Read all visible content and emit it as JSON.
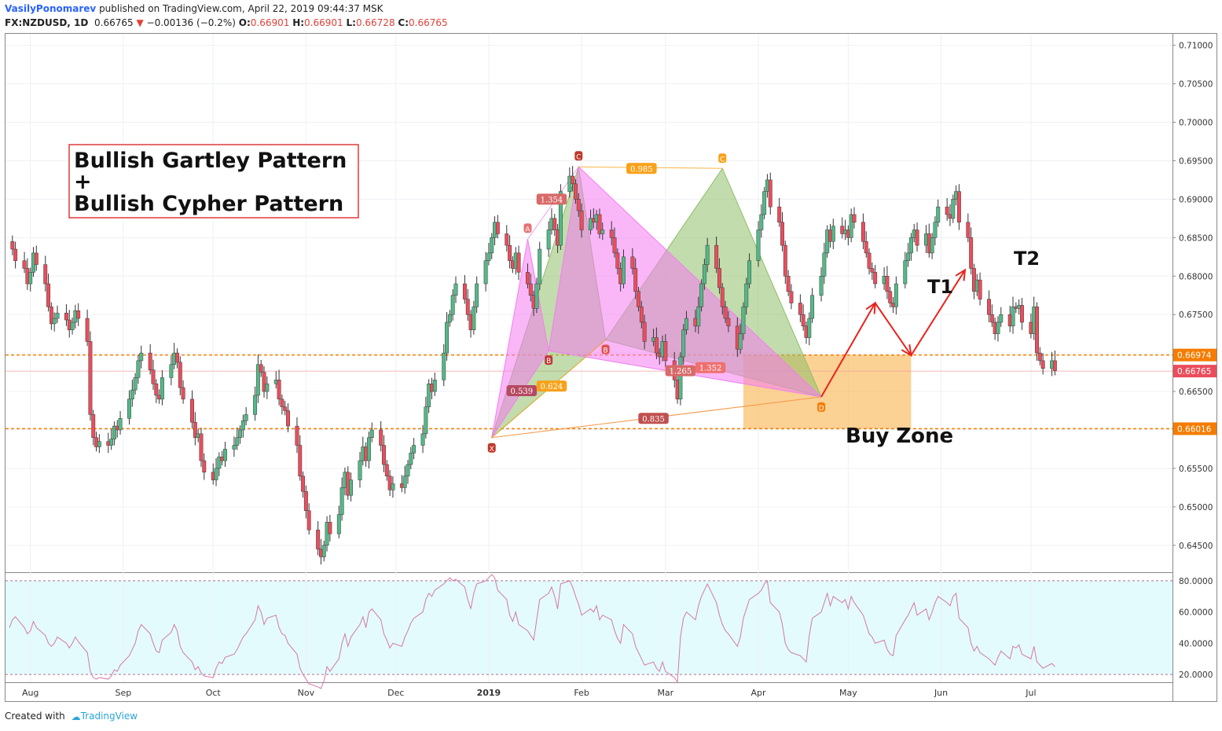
{
  "header": {
    "author": "VasilyPonomarev",
    "published": "published on TradingView.com, April 22, 2019 09:44:37 MSK",
    "symbol": "FX:NZDUSD, 1D",
    "last": "0.66765",
    "change": "−0.00136 (−0.2%)",
    "o_label": "O:",
    "o": "0.66901",
    "h_label": "H:",
    "h": "0.66901",
    "l_label": "L:",
    "l": "0.66728",
    "c_label": "C:",
    "c": "0.66765"
  },
  "footer": {
    "created": "Created with",
    "brand": "TradingView"
  },
  "annotations": {
    "title_line1": "Bullish Gartley Pattern",
    "title_line2": "+",
    "title_line3": "Bullish Cypher Pattern",
    "buy_zone": "Buy Zone",
    "t1": "T1",
    "t2": "T2"
  },
  "colors": {
    "up": "#53b987",
    "down": "#eb4d5c",
    "wick": "#333333",
    "gartley_fill": "#f57cf0",
    "cypher_fill": "#8fbf6a",
    "buy_zone": "#f9b34d",
    "level_line": "#f57c00",
    "arrow": "#e8231c",
    "rsi_bg": "#e3fbfc",
    "rsi_line": "#d677a8"
  },
  "chart_data": {
    "type": "candlestick",
    "x_ticks": [
      "Aug",
      "Sep",
      "Oct",
      "Nov",
      "Dec",
      "2019",
      "Feb",
      "Mar",
      "Apr",
      "May",
      "Jun",
      "Jul"
    ],
    "y_ticks": [
      "0.71000",
      "0.70500",
      "0.70000",
      "0.69500",
      "0.69000",
      "0.68500",
      "0.68000",
      "0.67500",
      "0.67000",
      "0.66500",
      "0.66000",
      "0.65500",
      "0.65000",
      "0.64500"
    ],
    "ylim": [
      0.6415,
      0.7115
    ],
    "price_tags": [
      {
        "label": "0.66974",
        "value": 0.66974,
        "color": "#f57c00"
      },
      {
        "label": "0.66765",
        "value": 0.66765,
        "color": "#eb4d5c"
      },
      {
        "label": "0.66016",
        "value": 0.66016,
        "color": "#f57c00"
      }
    ],
    "levels": [
      0.66974,
      0.66016
    ],
    "buy_zone": {
      "start_date": "2019-03-27",
      "end_date": "2019-05-22",
      "low": 0.66016,
      "high": 0.66974
    },
    "closes": [
      0.6845,
      0.6835,
      0.682,
      0.681,
      0.679,
      0.6805,
      0.683,
      0.6815,
      0.679,
      0.676,
      0.6738,
      0.6745,
      0.6752,
      0.6743,
      0.673,
      0.674,
      0.6755,
      0.6745,
      0.6715,
      0.662,
      0.659,
      0.6578,
      0.6585,
      0.658,
      0.6588,
      0.6605,
      0.66,
      0.6615,
      0.664,
      0.6652,
      0.6668,
      0.669,
      0.67,
      0.6678,
      0.666,
      0.6645,
      0.664,
      0.6668,
      0.6685,
      0.67,
      0.6688,
      0.6655,
      0.664,
      0.661,
      0.659,
      0.6595,
      0.656,
      0.6545,
      0.6535,
      0.655,
      0.6565,
      0.656,
      0.6575,
      0.658,
      0.659,
      0.66,
      0.6612,
      0.662,
      0.6645,
      0.6685,
      0.6675,
      0.665,
      0.666,
      0.6665,
      0.664,
      0.663,
      0.6625,
      0.6605,
      0.658,
      0.654,
      0.652,
      0.6495,
      0.647,
      0.6445,
      0.6435,
      0.645,
      0.648,
      0.6465,
      0.649,
      0.6525,
      0.6545,
      0.6515,
      0.6535,
      0.656,
      0.6578,
      0.656,
      0.659,
      0.66,
      0.658,
      0.6555,
      0.654,
      0.6522,
      0.653,
      0.6525,
      0.654,
      0.6555,
      0.657,
      0.658,
      0.6595,
      0.663,
      0.666,
      0.665,
      0.6665,
      0.67,
      0.674,
      0.675,
      0.6775,
      0.679,
      0.677,
      0.675,
      0.673,
      0.676,
      0.679,
      0.682,
      0.683,
      0.685,
      0.687,
      0.6855,
      0.684,
      0.682,
      0.681,
      0.683,
      0.6805,
      0.679,
      0.6775,
      0.6758,
      0.679,
      0.6835,
      0.686,
      0.6875,
      0.686,
      0.684,
      0.691,
      0.693,
      0.692,
      0.69,
      0.6885,
      0.686,
      0.6875,
      0.687,
      0.688,
      0.6855,
      0.686,
      0.685,
      0.683,
      0.681,
      0.679,
      0.6825,
      0.681,
      0.678,
      0.676,
      0.674,
      0.6715,
      0.672,
      0.67,
      0.6695,
      0.6715,
      0.669,
      0.6665,
      0.664,
      0.6695,
      0.673,
      0.6745,
      0.6735,
      0.676,
      0.679,
      0.6815,
      0.684,
      0.681,
      0.6785,
      0.676,
      0.6745,
      0.6735,
      0.6705,
      0.6725,
      0.676,
      0.679,
      0.682,
      0.686,
      0.688,
      0.691,
      0.6925,
      0.689,
      0.687,
      0.684,
      0.68,
      0.678,
      0.6765,
      0.675,
      0.6735,
      0.672,
      0.6745,
      0.6775,
      0.68,
      0.683,
      0.686,
      0.6845,
      0.6865,
      0.6855,
      0.686,
      0.685,
      0.688,
      0.687,
      0.6845,
      0.683,
      0.681,
      0.6805,
      0.679,
      0.68,
      0.678,
      0.6765,
      0.676,
      0.679,
      0.682,
      0.683,
      0.685,
      0.686,
      0.684,
      0.6855,
      0.683,
      0.685,
      0.687,
      0.689,
      0.688,
      0.6875,
      0.69,
      0.691,
      0.687,
      0.685,
      0.681,
      0.678,
      0.6795,
      0.677,
      0.675,
      0.674,
      0.6725,
      0.674,
      0.675,
      0.6735,
      0.676,
      0.6758,
      0.6762,
      0.674,
      0.6725,
      0.676,
      0.67,
      0.669,
      0.668,
      0.669,
      0.6677
    ],
    "rsi": {
      "ylim": [
        15,
        85
      ],
      "y_ticks": [
        "80.0000",
        "60.0000",
        "40.0000",
        "20.0000"
      ],
      "levels": [
        80,
        20
      ],
      "values": [
        50,
        55,
        57,
        50,
        46,
        48,
        54,
        50,
        45,
        40,
        38,
        40,
        44,
        40,
        37,
        40,
        44,
        41,
        34,
        22,
        18,
        17,
        18,
        17,
        19,
        23,
        22,
        26,
        32,
        36,
        40,
        48,
        52,
        46,
        40,
        35,
        34,
        42,
        47,
        52,
        48,
        38,
        34,
        28,
        23,
        25,
        21,
        19,
        18,
        24,
        28,
        27,
        31,
        33,
        36,
        40,
        44,
        46,
        55,
        64,
        60,
        52,
        56,
        58,
        50,
        46,
        45,
        40,
        33,
        24,
        20,
        17,
        14,
        12,
        11,
        16,
        25,
        22,
        30,
        40,
        46,
        38,
        44,
        52,
        57,
        50,
        60,
        62,
        55,
        46,
        42,
        37,
        40,
        38,
        44,
        48,
        53,
        56,
        60,
        68,
        72,
        70,
        74,
        78,
        80,
        82,
        80,
        81,
        76,
        68,
        62,
        72,
        78,
        80,
        82,
        84,
        82,
        74,
        68,
        58,
        54,
        60,
        52,
        48,
        45,
        42,
        55,
        68,
        72,
        76,
        70,
        62,
        78,
        80,
        76,
        70,
        65,
        58,
        62,
        60,
        64,
        55,
        58,
        55,
        48,
        43,
        40,
        52,
        46,
        38,
        34,
        30,
        26,
        28,
        24,
        22,
        28,
        22,
        18,
        15,
        44,
        56,
        60,
        55,
        64,
        70,
        74,
        78,
        66,
        58,
        52,
        48,
        46,
        38,
        44,
        56,
        62,
        68,
        72,
        74,
        78,
        80,
        66,
        60,
        52,
        40,
        36,
        34,
        32,
        30,
        28,
        45,
        56,
        60,
        66,
        72,
        64,
        70,
        66,
        68,
        62,
        70,
        66,
        58,
        52,
        46,
        44,
        40,
        42,
        36,
        33,
        32,
        45,
        55,
        58,
        62,
        66,
        58,
        62,
        55,
        60,
        66,
        70,
        66,
        64,
        70,
        72,
        56,
        50,
        40,
        35,
        38,
        34,
        30,
        28,
        26,
        31,
        35,
        30,
        38,
        37,
        39,
        33,
        30,
        38,
        28,
        26,
        24,
        27,
        25
      ]
    },
    "patterns": {
      "gartley_labels": [
        "X",
        "A",
        "B",
        "C",
        "D"
      ],
      "cypher_labels": [
        "X",
        "A",
        "B",
        "C",
        "D"
      ],
      "gartley_points": [
        {
          "date": "2019-01-02",
          "value": 0.659
        },
        {
          "date": "2019-01-14",
          "value": 0.6848
        },
        {
          "date": "2019-01-21",
          "value": 0.6703
        },
        {
          "date": "2019-01-31",
          "value": 0.6942
        },
        {
          "date": "2019-04-22",
          "value": 0.6643
        }
      ],
      "cypher_points": [
        {
          "date": "2019-01-02",
          "value": 0.659
        },
        {
          "date": "2019-01-31",
          "value": 0.6942
        },
        {
          "date": "2019-02-09",
          "value": 0.6717
        },
        {
          "date": "2019-03-20",
          "value": 0.694
        },
        {
          "date": "2019-04-22",
          "value": 0.6643
        }
      ],
      "ratios": [
        {
          "label": "1.354",
          "date": "2019-01-22",
          "value": 0.69,
          "color": "#d86a6a"
        },
        {
          "label": "0.985",
          "date": "2019-02-21",
          "value": 0.694,
          "color": "#f7a21a"
        },
        {
          "label": "0.539",
          "date": "2019-01-12",
          "value": 0.6651,
          "color": "#b54a62"
        },
        {
          "label": "0.624",
          "date": "2019-01-22",
          "value": 0.6657,
          "color": "#f7a21a"
        },
        {
          "label": "1.265",
          "date": "2019-03-06",
          "value": 0.6677,
          "color": "#d86a6a"
        },
        {
          "label": "1.352",
          "date": "2019-03-16",
          "value": 0.6681,
          "color": "#f07070"
        },
        {
          "label": "0.835",
          "date": "2019-02-25",
          "value": 0.6615,
          "color": "#c05050"
        }
      ]
    },
    "projection": {
      "dates": [
        "2019-04-22",
        "2019-05-10",
        "2019-05-22",
        "2019-06-09"
      ],
      "values": [
        0.6643,
        0.6765,
        0.6697,
        0.6808
      ]
    }
  }
}
